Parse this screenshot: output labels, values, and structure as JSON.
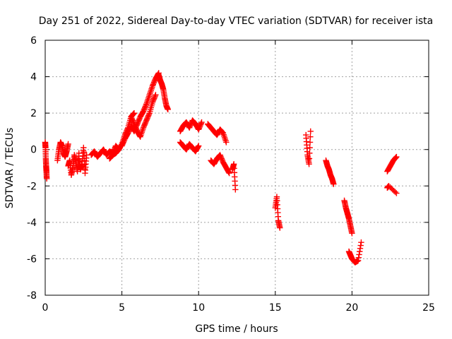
{
  "chart_data": {
    "type": "scatter",
    "title": "Day 251 of 2022, Sidereal Day-to-day VTEC variation (SDTVAR) for receiver ista",
    "xlabel": "GPS time / hours",
    "ylabel": "SDTVAR / TECUs",
    "xlim": [
      0,
      25
    ],
    "ylim": [
      -8,
      6
    ],
    "xticks": [
      0,
      5,
      10,
      15,
      20,
      25
    ],
    "yticks": [
      -8,
      -6,
      -4,
      -2,
      0,
      2,
      4,
      6
    ],
    "xtick_labels": [
      "0",
      "5",
      "10",
      "15",
      "20",
      "25"
    ],
    "ytick_labels": [
      "-8",
      "-6",
      "-4",
      "-2",
      "0",
      "2",
      "4",
      "6"
    ],
    "grid": true,
    "marker": "+",
    "color": "#ff0000",
    "series": [
      {
        "name": "SDTVAR",
        "segments": [
          {
            "x": [
              0.0,
              0.02,
              0.04,
              0.06,
              0.08,
              0.1
            ],
            "y": [
              0.4,
              0.1,
              -0.5,
              -0.9,
              -1.2,
              -1.6
            ]
          },
          {
            "x": [
              0.8,
              0.9,
              1.0,
              1.1,
              1.2,
              1.3,
              1.4,
              1.5
            ],
            "y": [
              -0.6,
              0.0,
              0.4,
              0.2,
              -0.2,
              -0.4,
              -0.1,
              0.3
            ]
          },
          {
            "x": [
              1.5,
              1.6,
              1.7,
              1.8,
              1.9,
              2.0,
              2.1,
              2.2
            ],
            "y": [
              -0.9,
              -0.6,
              -1.4,
              -1.0,
              -0.3,
              -0.7,
              -1.2,
              -0.2
            ]
          },
          {
            "x": [
              2.2,
              2.3,
              2.4,
              2.5,
              2.6,
              2.7
            ],
            "y": [
              -0.5,
              -1.1,
              -0.8,
              0.1,
              -1.3,
              -0.3
            ]
          },
          {
            "x": [
              3.0,
              3.2,
              3.4,
              3.6,
              3.8,
              4.0,
              4.2,
              4.4,
              4.6,
              4.8
            ],
            "y": [
              -0.3,
              -0.1,
              -0.4,
              -0.2,
              0.0,
              -0.3,
              -0.1,
              -0.2,
              0.2,
              0.0
            ]
          },
          {
            "x": [
              4.2,
              4.4,
              4.6,
              4.8,
              5.0,
              5.2,
              5.4,
              5.6,
              5.8
            ],
            "y": [
              -0.5,
              -0.3,
              -0.2,
              0.0,
              0.3,
              0.8,
              1.2,
              1.8,
              2.0
            ]
          },
          {
            "x": [
              5.0,
              5.2,
              5.4,
              5.6,
              5.8,
              6.0,
              6.2,
              6.4,
              6.6,
              6.8,
              7.0,
              7.2,
              7.4
            ],
            "y": [
              0.2,
              0.6,
              0.9,
              1.3,
              1.0,
              1.4,
              1.8,
              2.1,
              2.5,
              3.0,
              3.5,
              3.9,
              4.2
            ]
          },
          {
            "x": [
              5.6,
              5.8,
              6.0,
              6.2,
              6.4,
              6.6,
              6.8,
              7.0,
              7.2
            ],
            "y": [
              1.8,
              1.4,
              1.0,
              0.7,
              1.2,
              1.6,
              2.0,
              2.6,
              3.0
            ]
          },
          {
            "x": [
              7.4,
              7.5,
              7.6,
              7.7,
              7.8,
              7.9,
              8.0
            ],
            "y": [
              4.1,
              3.8,
              3.6,
              3.3,
              2.8,
              2.4,
              2.2
            ]
          },
          {
            "x": [
              8.8,
              9.0,
              9.2,
              9.4,
              9.6,
              9.8,
              10.0,
              10.2
            ],
            "y": [
              1.0,
              1.3,
              1.5,
              1.2,
              1.6,
              1.4,
              1.1,
              1.5
            ]
          },
          {
            "x": [
              8.8,
              9.0,
              9.2,
              9.4,
              9.6,
              9.8,
              10.0
            ],
            "y": [
              0.4,
              0.2,
              0.0,
              0.3,
              0.1,
              -0.1,
              0.2
            ]
          },
          {
            "x": [
              10.6,
              10.8,
              11.0,
              11.2,
              11.4,
              11.6,
              11.8
            ],
            "y": [
              1.4,
              1.2,
              1.0,
              0.8,
              1.1,
              0.9,
              0.4
            ]
          },
          {
            "x": [
              10.8,
              11.0,
              11.2,
              11.4,
              11.6,
              11.8,
              12.0
            ],
            "y": [
              -0.6,
              -0.8,
              -0.5,
              -0.3,
              -0.7,
              -1.0,
              -1.3
            ]
          },
          {
            "x": [
              12.2,
              12.3,
              12.4
            ],
            "y": [
              -1.1,
              -0.8,
              -2.2
            ]
          },
          {
            "x": [
              15.0,
              15.1,
              15.2,
              15.3
            ],
            "y": [
              -3.2,
              -2.6,
              -3.9,
              -4.3
            ]
          },
          {
            "x": [
              17.0,
              17.1,
              17.2,
              17.3
            ],
            "y": [
              0.8,
              -0.3,
              -0.8,
              1.0
            ]
          },
          {
            "x": [
              18.3,
              18.4,
              18.5,
              18.6,
              18.7,
              18.8
            ],
            "y": [
              -0.6,
              -0.9,
              -1.1,
              -1.4,
              -1.6,
              -1.9
            ]
          },
          {
            "x": [
              19.5,
              19.6,
              19.7,
              19.8,
              19.9,
              20.0
            ],
            "y": [
              -2.8,
              -3.2,
              -3.5,
              -3.8,
              -4.2,
              -4.6
            ]
          },
          {
            "x": [
              19.8,
              19.9,
              20.0,
              20.2,
              20.4,
              20.6
            ],
            "y": [
              -5.6,
              -5.8,
              -6.0,
              -6.2,
              -6.1,
              -5.1
            ]
          },
          {
            "x": [
              22.3,
              22.5,
              22.7,
              22.9
            ],
            "y": [
              -1.2,
              -0.9,
              -0.6,
              -0.4
            ]
          },
          {
            "x": [
              22.3,
              22.4,
              22.9
            ],
            "y": [
              -2.1,
              -2.0,
              -2.4
            ]
          }
        ]
      }
    ]
  }
}
